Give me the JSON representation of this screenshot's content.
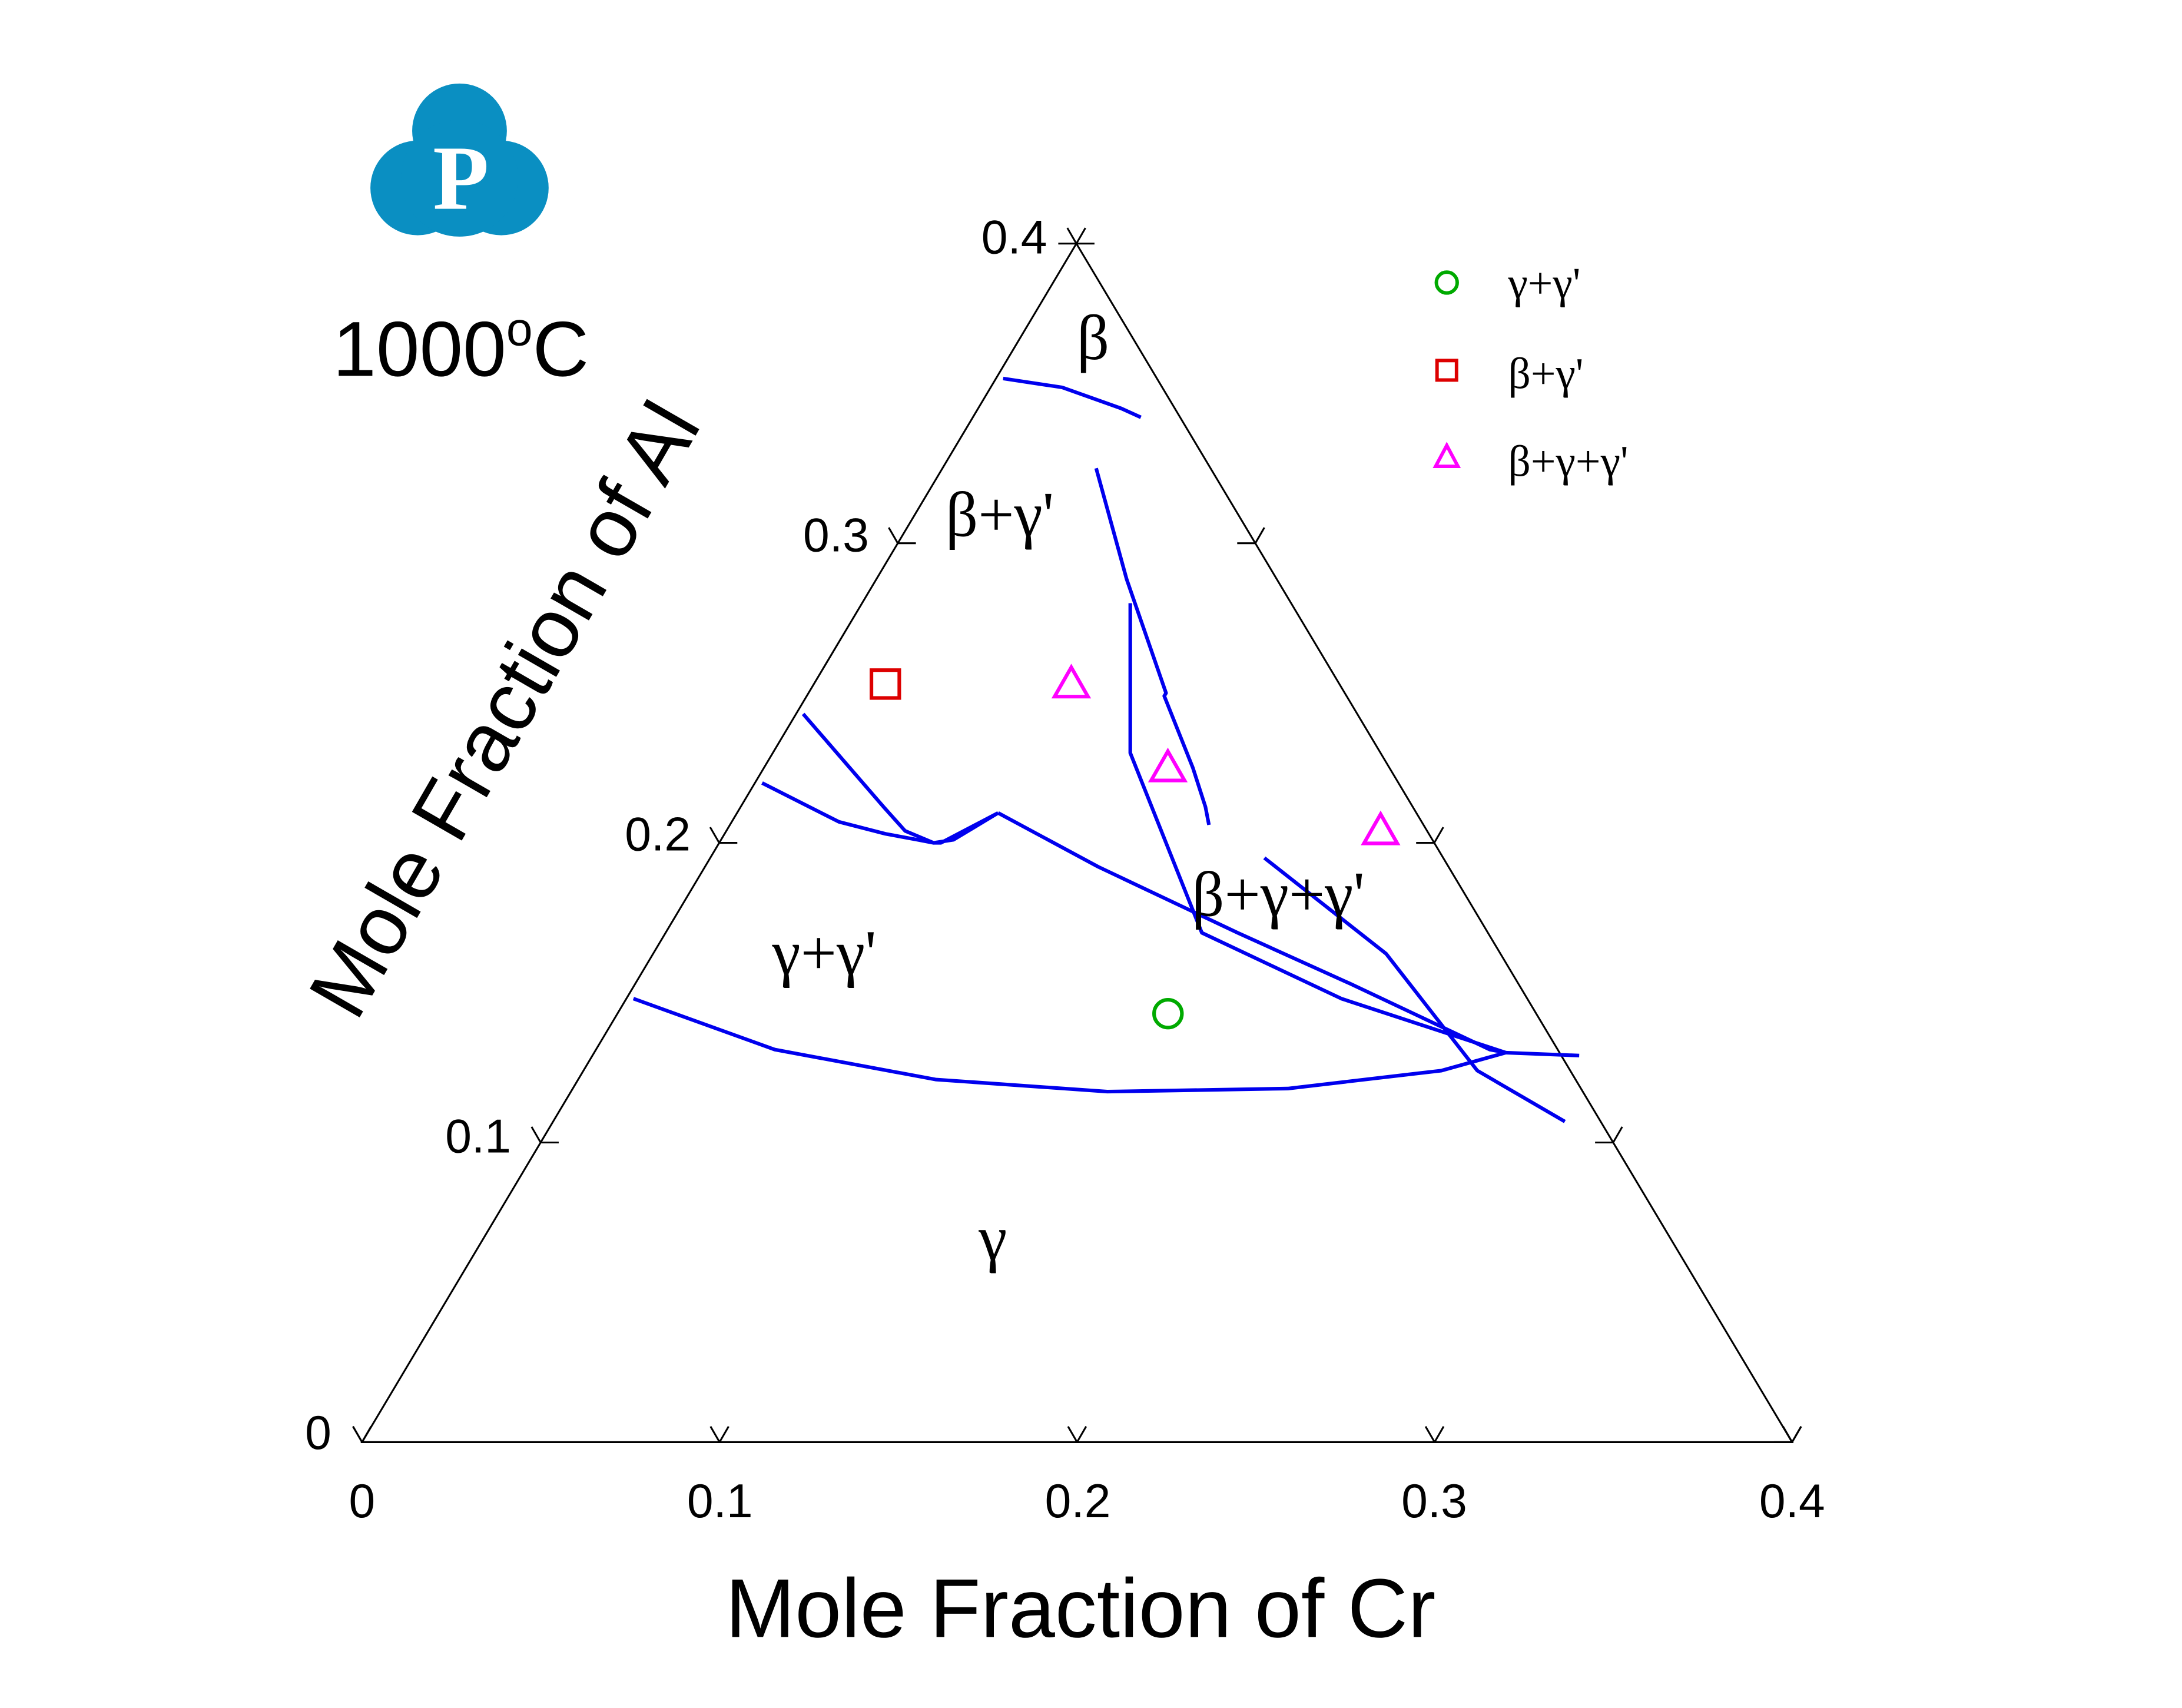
{
  "chart_data": {
    "type": "scatter",
    "subtype": "ternary-isothermal-section",
    "title": "1000",
    "title_superscript": "o",
    "title_unit": "C",
    "xlabel": "Mole Fraction of Cr",
    "ylabel": "Mole Fraction of Al",
    "xlim": [
      0,
      0.4
    ],
    "ylim": [
      0,
      0.4
    ],
    "x_ticks": [
      "0",
      "0.1",
      "0.2",
      "0.3",
      "0.4"
    ],
    "y_ticks": [
      "0",
      "0.1",
      "0.2",
      "0.3",
      "0.4"
    ],
    "tick_values": [
      0,
      0.1,
      0.2,
      0.3,
      0.4
    ],
    "grid": false,
    "legend_position": "top-right",
    "colors": {
      "axes": "#000000",
      "boundary": "#0000ee",
      "gamma_gamma_prime": "#00aa00",
      "beta_gamma": "#dd0000",
      "beta_gamma_gamma_prime": "#ff00ff",
      "logo": "#0a8fc2"
    },
    "legend": [
      {
        "label": "γ+γ'",
        "marker": "circle",
        "color": "#00aa00"
      },
      {
        "label": "β+γ'",
        "marker": "square",
        "color": "#dd0000"
      },
      {
        "label": "β+γ+γ'",
        "marker": "triangle",
        "color": "#ff00ff"
      }
    ],
    "phase_labels": [
      {
        "text": "β",
        "x": 0.195,
        "y": 0.365
      },
      {
        "text": "β+γ'",
        "x": 0.145,
        "y": 0.305
      },
      {
        "text": "γ+γ'",
        "x": 0.065,
        "y": 0.16
      },
      {
        "text": "β+γ+γ'",
        "x": 0.21,
        "y": 0.18
      },
      {
        "text": "γ",
        "x": 0.135,
        "y": 0.065
      }
    ],
    "series": [
      {
        "name": "γ+γ'",
        "marker": "circle",
        "color": "#00aa00",
        "points": [
          {
            "x": 0.154,
            "y": 0.143
          }
        ]
      },
      {
        "name": "β+γ'",
        "marker": "square",
        "color": "#dd0000",
        "points": [
          {
            "x": 0.02,
            "y": 0.253
          }
        ]
      },
      {
        "name": "β+γ+γ'",
        "marker": "triangle",
        "color": "#ff00ff",
        "points": [
          {
            "x": 0.072,
            "y": 0.253
          },
          {
            "x": 0.113,
            "y": 0.225
          },
          {
            "x": 0.183,
            "y": 0.204
          }
        ]
      }
    ],
    "phase_boundaries": [
      [
        [
          0.002,
          0.355
        ],
        [
          0.02,
          0.352
        ],
        [
          0.04,
          0.345
        ],
        [
          0.047,
          0.342
        ]
      ],
      [
        [
          0.043,
          0.325
        ],
        [
          0.07,
          0.288
        ],
        [
          0.1,
          0.25
        ],
        [
          0.1,
          0.249
        ],
        [
          0.12,
          0.225
        ],
        [
          0.13,
          0.212
        ],
        [
          0.134,
          0.206
        ]
      ],
      [
        [
          0.002,
          0.243
        ],
        [
          0.04,
          0.212
        ],
        [
          0.05,
          0.204
        ],
        [
          0.06,
          0.2
        ],
        [
          0.062,
          0.2
        ],
        [
          0.073,
          0.21
        ]
      ],
      [
        [
          0.002,
          0.22
        ],
        [
          0.03,
          0.207
        ],
        [
          0.045,
          0.203
        ],
        [
          0.055,
          0.201
        ],
        [
          0.06,
          0.2
        ],
        [
          0.065,
          0.201
        ],
        [
          0.073,
          0.21
        ]
      ],
      [
        [
          0.073,
          0.21
        ],
        [
          0.11,
          0.192
        ],
        [
          0.16,
          0.17
        ],
        [
          0.2,
          0.153
        ],
        [
          0.25,
          0.131
        ],
        [
          0.255,
          0.13
        ]
      ],
      [
        [
          0.002,
          0.148
        ],
        [
          0.05,
          0.131
        ],
        [
          0.1,
          0.121
        ],
        [
          0.15,
          0.117
        ],
        [
          0.2,
          0.118
        ],
        [
          0.24,
          0.124
        ],
        [
          0.255,
          0.13
        ]
      ],
      [
        [
          0.075,
          0.28
        ],
        [
          0.1,
          0.23
        ],
        [
          0.15,
          0.17
        ],
        [
          0.2,
          0.148
        ],
        [
          0.255,
          0.13
        ]
      ],
      [
        [
          0.155,
          0.195
        ],
        [
          0.205,
          0.163
        ],
        [
          0.25,
          0.124
        ],
        [
          0.283,
          0.107
        ]
      ],
      [
        [
          0.255,
          0.13
        ],
        [
          0.276,
          0.129
        ]
      ]
    ]
  },
  "logo": {
    "letter": "P"
  }
}
